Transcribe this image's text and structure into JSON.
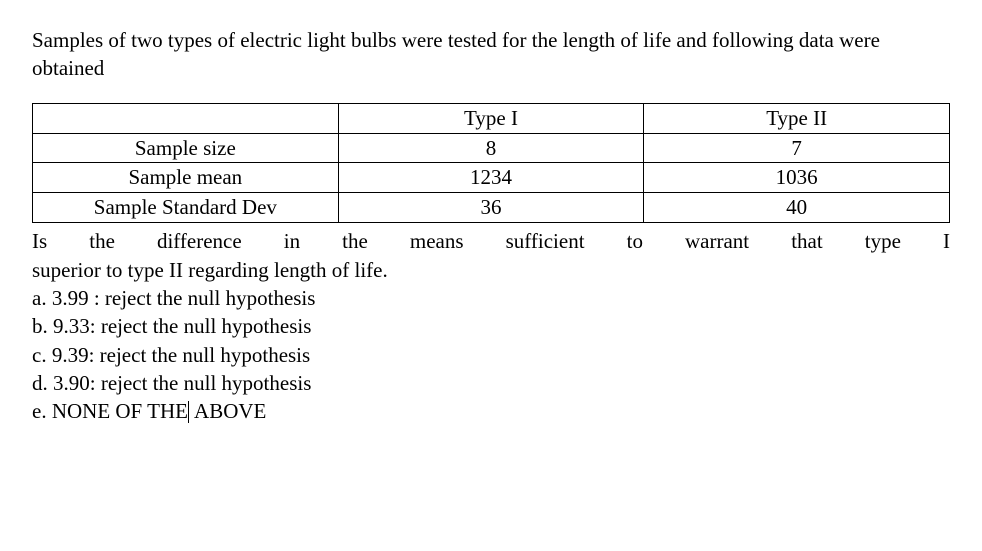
{
  "intro": "Samples of two types of electric light bulbs were tested for the length of life and following data were obtained",
  "table": {
    "header": {
      "blank": "",
      "col1": "Type I",
      "col2": "Type II"
    },
    "rows": [
      {
        "label": "Sample size",
        "c1": "8",
        "c2": "7"
      },
      {
        "label": "Sample mean",
        "c1": "1234",
        "c2": "1036"
      },
      {
        "label": "Sample Standard Dev",
        "c1": "36",
        "c2": "40"
      }
    ]
  },
  "question_line1": "Is the difference in the means sufficient to warrant that type I",
  "question_line2": "superior to type II regarding length of life.",
  "options": {
    "a": "a. 3.99 : reject the null hypothesis",
    "b": "b. 9.33: reject the null hypothesis",
    "c": "c. 9.39: reject the null hypothesis",
    "d": "d. 3.90: reject the null hypothesis",
    "e_pre": "e. NONE OF THE",
    "e_post": " ABOVE"
  }
}
